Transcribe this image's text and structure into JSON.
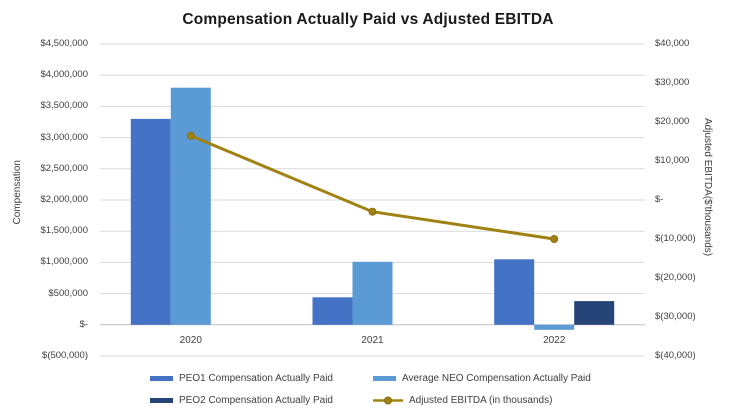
{
  "chart_data": {
    "type": "combo-bar-line",
    "title": "Compensation Actually Paid vs Adjusted EBITDA",
    "categories": [
      "2020",
      "2021",
      "2022"
    ],
    "bar_series": [
      {
        "name": "PEO1 Compensation Actually Paid",
        "color": "#4472C4",
        "axis": "left",
        "values": [
          3300000,
          440000,
          1050000
        ]
      },
      {
        "name": "Average NEO Compensation Actually Paid",
        "color": "#5B9BD5",
        "axis": "left",
        "values": [
          3800000,
          1010000,
          -80000
        ]
      },
      {
        "name": "PEO2 Compensation Actually Paid",
        "color": "#264478",
        "axis": "left",
        "values": [
          null,
          null,
          380000
        ]
      }
    ],
    "line_series": [
      {
        "name": "Adjusted EBITDA (in thousands)",
        "color": "#A08214",
        "marker": "circle",
        "axis": "right",
        "values": [
          16500,
          -3000,
          -10000
        ]
      }
    ],
    "left_axis": {
      "title": "Compensation",
      "min": -500000,
      "max": 4500000,
      "step": 500000,
      "tick_labels": [
        "$4,500,000",
        "$4,000,000",
        "$3,500,000",
        "$3,000,000",
        "$2,500,000",
        "$2,000,000",
        "$1,500,000",
        "$1,000,000",
        "$500,000",
        "$-",
        "$(500,000)"
      ]
    },
    "right_axis": {
      "title": "Adjusted EBITDA($'thousands)",
      "min": -40000,
      "max": 40000,
      "step": 10000,
      "tick_labels": [
        "$40,000",
        "$30,000",
        "$20,000",
        "$10,000",
        "$-",
        "$(10,000)",
        "$(20,000)",
        "$(30,000)",
        "$(40,000)"
      ]
    },
    "legend": {
      "position": "bottom",
      "columns": 2
    },
    "grid": "horizontal",
    "colors": {
      "gridline": "#D9D9D9",
      "axis_line": "#BFBFBF",
      "tick_text": "#404040",
      "title_text": "#1A1A1A"
    }
  }
}
